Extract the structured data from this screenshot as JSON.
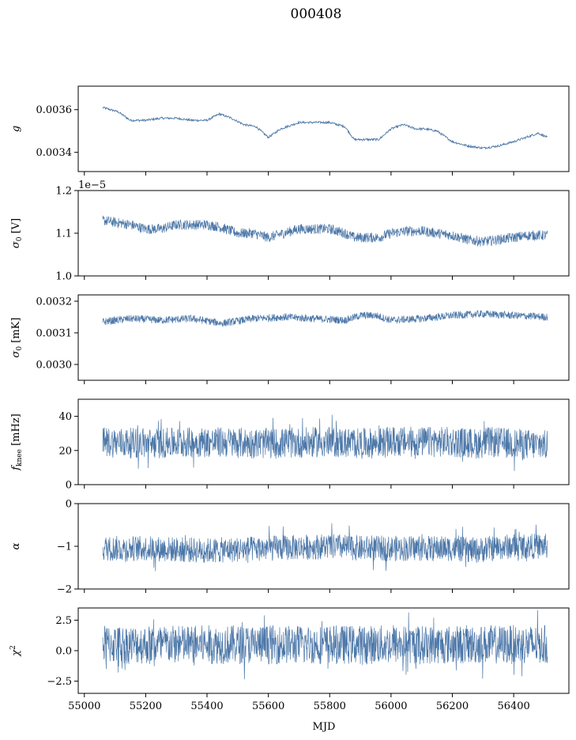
{
  "figure": {
    "title": "000408",
    "xlabel": "MJD",
    "series_color": "#4c77a8"
  },
  "chart_data": [
    {
      "type": "line",
      "ylabel": "g",
      "ylabel_sub": "",
      "ylim": [
        0.00331,
        0.00371
      ],
      "yticks": [
        0.0034,
        0.0036
      ],
      "ytick_labels": [
        "0.0034",
        "0.0036"
      ],
      "offset_label": "",
      "xlim": [
        54980,
        56580
      ],
      "x": [
        55060,
        55110,
        55150,
        55200,
        55250,
        55300,
        55350,
        55400,
        55440,
        55480,
        55520,
        55560,
        55600,
        55640,
        55700,
        55760,
        55800,
        55850,
        55880,
        55920,
        55960,
        56000,
        56040,
        56080,
        56110,
        56150,
        56200,
        56250,
        56300,
        56350,
        56400,
        56440,
        56480,
        56510
      ],
      "y": [
        0.00361,
        0.00359,
        0.00355,
        0.00355,
        0.00356,
        0.00356,
        0.00355,
        0.00355,
        0.00358,
        0.00356,
        0.00353,
        0.00352,
        0.00347,
        0.00351,
        0.00354,
        0.00354,
        0.00354,
        0.00352,
        0.00346,
        0.00346,
        0.00346,
        0.00351,
        0.00353,
        0.00351,
        0.00351,
        0.0035,
        0.00345,
        0.00343,
        0.00342,
        0.00343,
        0.00345,
        0.00347,
        0.00349,
        0.00347
      ],
      "noise_band": 5e-06
    },
    {
      "type": "line",
      "ylabel": "σ",
      "ylabel_sub": "0",
      "ylabel_unit": "[V]",
      "ylim": [
        1.0,
        1.2
      ],
      "yticks": [
        1.0,
        1.1,
        1.2
      ],
      "ytick_labels": [
        "1.0",
        "1.1",
        "1.2"
      ],
      "offset_label": "1e−5",
      "xlim": [
        54980,
        56580
      ],
      "x": [
        55060,
        55150,
        55200,
        55250,
        55300,
        55350,
        55400,
        55440,
        55500,
        55550,
        55600,
        55650,
        55700,
        55750,
        55800,
        55850,
        55880,
        55920,
        55960,
        56000,
        56050,
        56100,
        56150,
        56200,
        56250,
        56300,
        56350,
        56400,
        56450,
        56510
      ],
      "y": [
        1.13,
        1.12,
        1.11,
        1.11,
        1.12,
        1.12,
        1.12,
        1.115,
        1.1,
        1.1,
        1.09,
        1.1,
        1.11,
        1.11,
        1.11,
        1.1,
        1.09,
        1.09,
        1.09,
        1.1,
        1.105,
        1.105,
        1.1,
        1.095,
        1.085,
        1.08,
        1.085,
        1.09,
        1.095,
        1.095
      ],
      "noise_band": 0.012
    },
    {
      "type": "line",
      "ylabel": "σ",
      "ylabel_sub": "0",
      "ylabel_unit": "[mK]",
      "ylim": [
        0.00295,
        0.00322
      ],
      "yticks": [
        0.003,
        0.0031,
        0.0032
      ],
      "ytick_labels": [
        "0.0030",
        "0.0031",
        "0.0032"
      ],
      "offset_label": "",
      "xlim": [
        54980,
        56580
      ],
      "x": [
        55060,
        55150,
        55250,
        55350,
        55450,
        55550,
        55650,
        55750,
        55850,
        55900,
        55950,
        56000,
        56100,
        56200,
        56300,
        56400,
        56510
      ],
      "y": [
        0.003135,
        0.003145,
        0.00314,
        0.003145,
        0.00313,
        0.003145,
        0.00315,
        0.003145,
        0.00314,
        0.003155,
        0.003155,
        0.00314,
        0.003145,
        0.003155,
        0.00316,
        0.003155,
        0.00315
      ],
      "noise_band": 1.2e-05
    },
    {
      "type": "line",
      "ylabel": "f",
      "ylabel_sub": "knee",
      "ylabel_unit": "[mHz]",
      "ylim": [
        0,
        50
      ],
      "yticks": [
        0,
        20,
        40
      ],
      "ytick_labels": [
        "0",
        "20",
        "40"
      ],
      "offset_label": "",
      "xlim": [
        54980,
        56580
      ],
      "x": [
        55060,
        55200,
        55400,
        55600,
        55800,
        55910,
        56000,
        56200,
        56280,
        56320,
        56400,
        56510
      ],
      "y": [
        25,
        24,
        25,
        24,
        25,
        24,
        25,
        25,
        24,
        25,
        24,
        23
      ],
      "noise_band": 9
    },
    {
      "type": "line",
      "ylabel": "α",
      "ylabel_sub": "",
      "ylabel_unit": "",
      "ylim": [
        -2,
        0
      ],
      "yticks": [
        -2,
        -1,
        0
      ],
      "ytick_labels": [
        "−2",
        "−1",
        "0"
      ],
      "offset_label": "",
      "xlim": [
        54980,
        56580
      ],
      "x": [
        55060,
        55200,
        55400,
        55600,
        55800,
        55910,
        56000,
        56200,
        56280,
        56320,
        56400,
        56510
      ],
      "y": [
        -1.05,
        -1.05,
        -1.1,
        -1.05,
        -1.0,
        -1.05,
        -1.05,
        -1.05,
        -1.1,
        -1.05,
        -1.0,
        -1.0
      ],
      "noise_band": 0.3
    },
    {
      "type": "line",
      "ylabel": "χ",
      "ylabel_sub": "",
      "ylabel_sup": "2",
      "ylabel_unit": "",
      "ylim": [
        -3.5,
        3.5
      ],
      "yticks": [
        -2.5,
        0.0,
        2.5
      ],
      "ytick_labels": [
        "−2.5",
        "0.0",
        "2.5"
      ],
      "offset_label": "",
      "xlim": [
        54980,
        56580
      ],
      "x": [
        55060,
        55200,
        55400,
        55600,
        55800,
        55910,
        56000,
        56200,
        56280,
        56320,
        56400,
        56510
      ],
      "y": [
        0.5,
        0.5,
        0.5,
        0.5,
        0.5,
        0.5,
        0.5,
        0.5,
        0.5,
        0.5,
        0.5,
        0.5
      ],
      "noise_band": 1.6
    }
  ],
  "x_axis": {
    "ticks": [
      55000,
      55200,
      55400,
      55600,
      55800,
      56000,
      56200,
      56400
    ],
    "tick_labels": [
      "55000",
      "55200",
      "55400",
      "55600",
      "55800",
      "56000",
      "56200",
      "56400"
    ]
  }
}
